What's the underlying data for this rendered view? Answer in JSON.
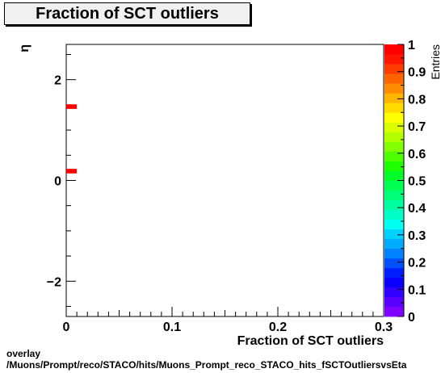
{
  "chart_data": {
    "type": "heatmap",
    "title": "Fraction of SCT outliers",
    "xlabel": "Fraction of SCT outliers",
    "ylabel": "η",
    "xlim": [
      0,
      0.3
    ],
    "ylim": [
      -2.7,
      2.7
    ],
    "x_ticks": [
      {
        "value": 0,
        "label": "0"
      },
      {
        "value": 0.1,
        "label": "0.1"
      },
      {
        "value": 0.2,
        "label": "0.2"
      },
      {
        "value": 0.3,
        "label": "0.3"
      }
    ],
    "y_ticks": [
      {
        "value": -2,
        "label": "−2"
      },
      {
        "value": 0,
        "label": "0"
      },
      {
        "value": 2,
        "label": "2"
      }
    ],
    "cells": [
      {
        "x": 0,
        "x2": 0.01,
        "y": 1.42,
        "y2": 1.51,
        "value": 1
      },
      {
        "x": 0,
        "x2": 0.01,
        "y": 0.14,
        "y2": 0.23,
        "value": 1
      }
    ],
    "colorbar": {
      "label": "Entries",
      "range": [
        0,
        1
      ],
      "ticks": [
        {
          "value": 0,
          "label": "0"
        },
        {
          "value": 0.1,
          "label": "0.1"
        },
        {
          "value": 0.2,
          "label": "0.2"
        },
        {
          "value": 0.3,
          "label": "0.3"
        },
        {
          "value": 0.4,
          "label": "0.4"
        },
        {
          "value": 0.5,
          "label": "0.5"
        },
        {
          "value": 0.6,
          "label": "0.6"
        },
        {
          "value": 0.7,
          "label": "0.7"
        },
        {
          "value": 0.8,
          "label": "0.8"
        },
        {
          "value": 0.9,
          "label": "0.9"
        },
        {
          "value": 1,
          "label": "1"
        }
      ],
      "colors": [
        "#7f00ff",
        "#5a00ff",
        "#3200ff",
        "#0a00ff",
        "#001eff",
        "#0050ff",
        "#0082ff",
        "#00aaff",
        "#00d2ff",
        "#00fff0",
        "#00ffc8",
        "#00ffa0",
        "#00ff78",
        "#00ff50",
        "#00ff28",
        "#1eff00",
        "#50ff00",
        "#82ff00",
        "#b4ff00",
        "#dcff00",
        "#ffff00",
        "#ffdc00",
        "#ffb400",
        "#ff8c00",
        "#ff6400",
        "#ff3c00",
        "#ff1400",
        "#ff0000"
      ]
    }
  },
  "footer": {
    "line1": "overlay",
    "line2": "/Muons/Prompt/reco/STACO/hits/Muons_Prompt_reco_STACO_hits_fSCTOutliersvsEta"
  }
}
